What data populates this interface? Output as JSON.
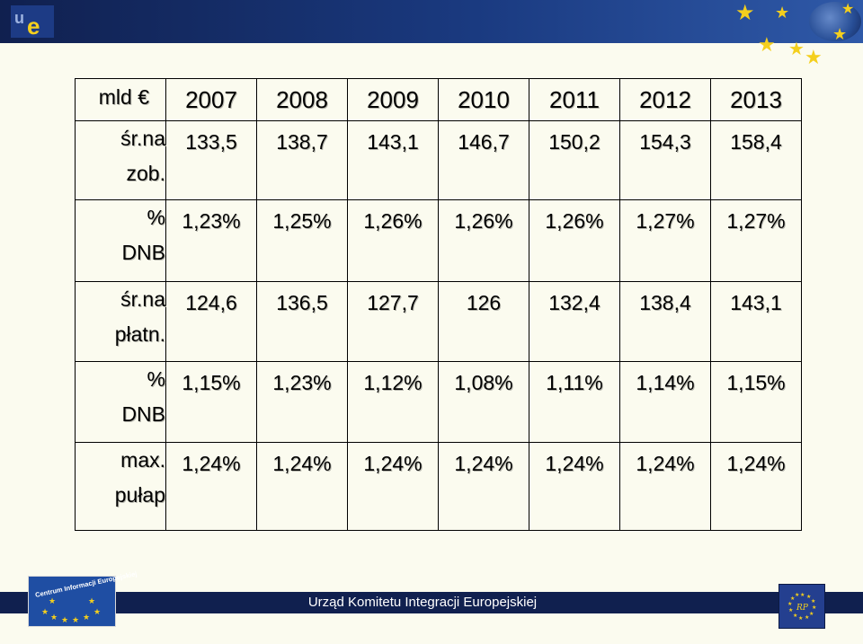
{
  "header": {
    "corner_label": "mld €",
    "years": [
      "2007",
      "2008",
      "2009",
      "2010",
      "2011",
      "2012",
      "2013"
    ]
  },
  "rows": [
    {
      "label_lines": [
        "śr.na",
        "zob."
      ],
      "values": [
        "133,5",
        "138,7",
        "143,1",
        "146,7",
        "150,2",
        "154,3",
        "158,4"
      ]
    },
    {
      "label_lines": [
        "%",
        "DNB"
      ],
      "values": [
        "1,23%",
        "1,25%",
        "1,26%",
        "1,26%",
        "1,26%",
        "1,27%",
        "1,27%"
      ]
    },
    {
      "label_lines": [
        "śr.na",
        "płatn."
      ],
      "values": [
        "124,6",
        "136,5",
        "127,7",
        "126",
        "132,4",
        "138,4",
        "143,1"
      ]
    },
    {
      "label_lines": [
        "%",
        "DNB"
      ],
      "values": [
        "1,15%",
        "1,23%",
        "1,12%",
        "1,08%",
        "1,11%",
        "1,14%",
        "1,15%"
      ]
    },
    {
      "label_lines": [
        "max.",
        "pułap"
      ],
      "values": [
        "1,24%",
        "1,24%",
        "1,24%",
        "1,24%",
        "1,24%",
        "1,24%",
        "1,24%"
      ]
    }
  ],
  "footer": {
    "office_name": "Urząd Komitetu Integracji Europejskiej",
    "cie_logo_text": "Centrum Informacji Europejskiej"
  },
  "colors": {
    "banner": "#10204f",
    "star": "#f4cf1d",
    "background": "#fbfbef"
  }
}
